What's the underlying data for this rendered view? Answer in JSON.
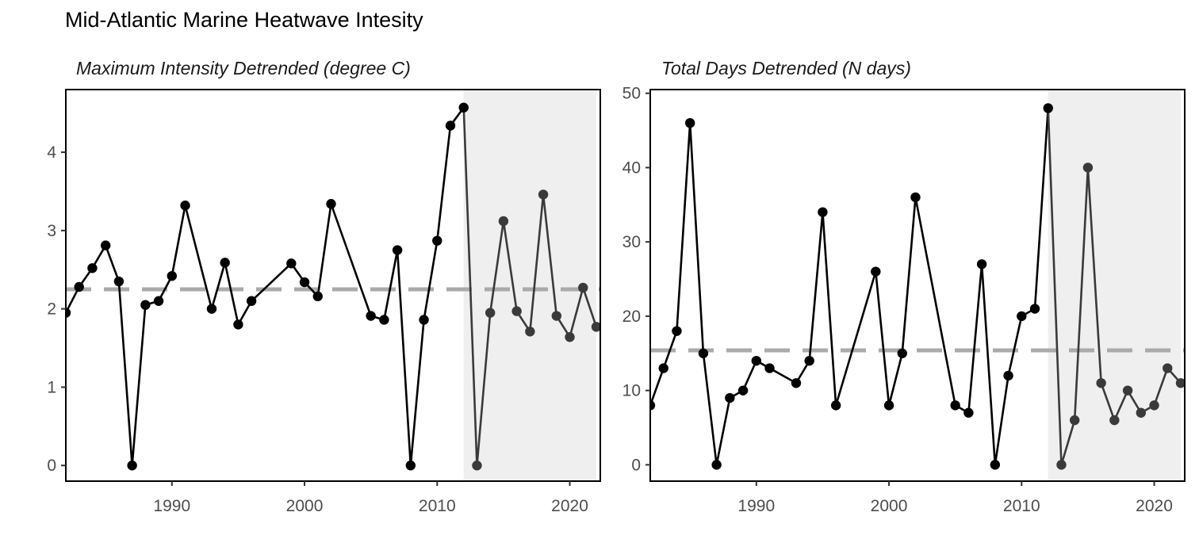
{
  "title": "Mid-Atlantic Marine Heatwave Intesity",
  "colors": {
    "line_main": "#000000",
    "line_recent": "#3a3a3a",
    "reference_line": "#aaaaaa",
    "shade": "#efefef"
  },
  "chart_data": [
    {
      "type": "line",
      "title": "Maximum Intensity Detrended (degree C)",
      "xlabel": "",
      "ylabel": "",
      "xlim": [
        1982,
        2022.3
      ],
      "ylim": [
        -0.2,
        4.8
      ],
      "xticks": [
        1990,
        2000,
        2010,
        2020
      ],
      "yticks": [
        0,
        1,
        2,
        3,
        4
      ],
      "grid": false,
      "reference_line": 2.25,
      "shaded_region": [
        2012,
        2022
      ],
      "x": [
        1982,
        1983,
        1984,
        1985,
        1986,
        1987,
        1988,
        1989,
        1990,
        1991,
        1993,
        1994,
        1995,
        1996,
        1999,
        2000,
        2001,
        2002,
        2005,
        2006,
        2007,
        2008,
        2009,
        2010,
        2011,
        2012,
        2013,
        2014,
        2015,
        2016,
        2017,
        2018,
        2019,
        2020,
        2021,
        2022
      ],
      "values": [
        1.95,
        2.28,
        2.52,
        2.81,
        2.35,
        0.0,
        2.05,
        2.1,
        2.42,
        3.32,
        2.0,
        2.59,
        1.8,
        2.1,
        2.58,
        2.34,
        2.16,
        3.34,
        1.91,
        1.86,
        2.75,
        0.0,
        1.86,
        2.87,
        4.34,
        4.57,
        0.0,
        1.95,
        3.12,
        1.97,
        1.71,
        3.46,
        1.91,
        1.64,
        2.27,
        1.77
      ]
    },
    {
      "type": "line",
      "title": "Total Days Detrended (N days)",
      "xlabel": "",
      "ylabel": "",
      "xlim": [
        1982,
        2022.3
      ],
      "ylim": [
        -2.2,
        50.5
      ],
      "xticks": [
        1990,
        2000,
        2010,
        2020
      ],
      "yticks": [
        0,
        10,
        20,
        30,
        40,
        50
      ],
      "grid": false,
      "reference_line": 15.4,
      "shaded_region": [
        2012,
        2022
      ],
      "x": [
        1982,
        1983,
        1984,
        1985,
        1986,
        1987,
        1988,
        1989,
        1990,
        1991,
        1993,
        1994,
        1995,
        1996,
        1999,
        2000,
        2001,
        2002,
        2005,
        2006,
        2007,
        2008,
        2009,
        2010,
        2011,
        2012,
        2013,
        2014,
        2015,
        2016,
        2017,
        2018,
        2019,
        2020,
        2021,
        2022
      ],
      "values": [
        8,
        13,
        18,
        46,
        15,
        0,
        9,
        10,
        14,
        13,
        11,
        14,
        34,
        8,
        26,
        8,
        15,
        36,
        8,
        7,
        27,
        0,
        12,
        20,
        21,
        48,
        0,
        6,
        40,
        11,
        6,
        10,
        7,
        8,
        13,
        11
      ]
    }
  ]
}
